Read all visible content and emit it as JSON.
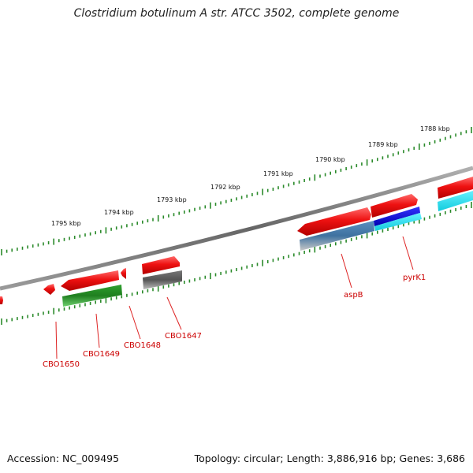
{
  "title": "Clostridium botulinum A str. ATCC 3502, complete genome",
  "footer": {
    "accession": "Accession: NC_009495",
    "summary": "Topology: circular; Length: 3,886,916 bp; Genes: 3,686"
  },
  "kbp_labels": [
    "1795 kbp",
    "1794 kbp",
    "1793 kbp",
    "1792 kbp",
    "1791 kbp",
    "1790 kbp",
    "1789 kbp",
    "1788 kbp"
  ],
  "gene_labels": [
    "CBO1650",
    "CBO1649",
    "CBO1648",
    "CBO1647",
    "aspB",
    "pyrK1"
  ],
  "colors": {
    "backbone": "#7a7a7a",
    "tick": "#2a8a2a",
    "cds_forward": "#ee1111",
    "cds_green": "#228b22",
    "cds_gray": "#666666",
    "cds_steelblue": "#4682b4",
    "cds_blue": "#1a1aee",
    "cds_cyan": "#22ddee",
    "label": "#cc0000"
  }
}
